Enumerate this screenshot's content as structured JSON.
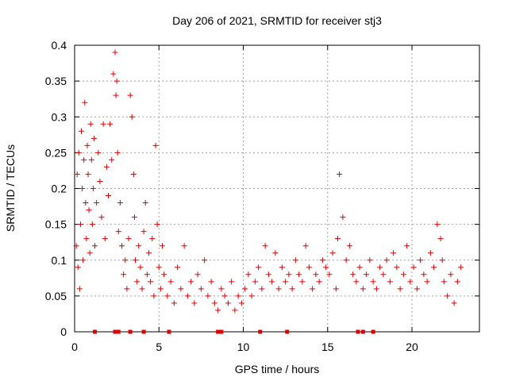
{
  "chart_data": {
    "type": "scatter",
    "title": "Day 206 of 2021, SRMTID for receiver stj3",
    "xlabel": "GPS time / hours",
    "ylabel": "SRMTID / TECUs",
    "xlim": [
      0,
      24
    ],
    "ylim": [
      0,
      0.4
    ],
    "xticks": [
      0,
      5,
      10,
      15,
      20
    ],
    "xtick_labels": [
      "0",
      "5",
      "10",
      "15",
      "20"
    ],
    "yticks": [
      0,
      0.05,
      0.1,
      0.15,
      0.2,
      0.25,
      0.3,
      0.35,
      0.4
    ],
    "ytick_labels": [
      "0",
      "0.05",
      "0.1",
      "0.15",
      "0.2",
      "0.25",
      "0.3",
      "0.35",
      "0.4"
    ],
    "grid": true,
    "marker": "+",
    "color": "#e00000",
    "series": [
      {
        "name": "SRMTID",
        "x": [
          0.1,
          0.15,
          0.2,
          0.25,
          0.3,
          0.35,
          0.4,
          0.45,
          0.5,
          0.55,
          0.6,
          0.65,
          0.7,
          0.75,
          0.8,
          0.85,
          0.9,
          0.95,
          1.0,
          1.05,
          1.1,
          1.15,
          1.2,
          1.3,
          1.4,
          1.5,
          1.6,
          1.7,
          1.8,
          1.9,
          2.0,
          2.1,
          2.2,
          2.3,
          2.4,
          2.45,
          2.5,
          2.55,
          2.6,
          2.7,
          2.8,
          2.9,
          3.0,
          3.1,
          3.2,
          3.3,
          3.4,
          3.5,
          3.55,
          3.6,
          3.7,
          3.8,
          3.9,
          4.0,
          4.1,
          4.2,
          4.3,
          4.4,
          4.5,
          4.6,
          4.7,
          4.8,
          4.9,
          5.0,
          5.1,
          5.2,
          5.3,
          5.5,
          5.7,
          5.9,
          6.1,
          6.3,
          6.5,
          6.7,
          6.9,
          7.1,
          7.3,
          7.5,
          7.7,
          7.9,
          8.1,
          8.3,
          8.5,
          8.7,
          8.9,
          9.1,
          9.3,
          9.5,
          9.7,
          9.9,
          10.1,
          10.3,
          10.5,
          10.7,
          10.9,
          11.1,
          11.3,
          11.5,
          11.7,
          11.9,
          12.1,
          12.3,
          12.5,
          12.7,
          12.9,
          13.1,
          13.3,
          13.5,
          13.7,
          13.9,
          14.1,
          14.3,
          14.5,
          14.7,
          14.9,
          15.1,
          15.3,
          15.5,
          15.6,
          15.7,
          15.9,
          16.1,
          16.3,
          16.5,
          16.7,
          16.9,
          17.1,
          17.3,
          17.5,
          17.7,
          17.9,
          18.1,
          18.3,
          18.5,
          18.7,
          18.9,
          19.1,
          19.3,
          19.5,
          19.7,
          19.9,
          20.1,
          20.3,
          20.5,
          20.7,
          20.9,
          21.1,
          21.3,
          21.5,
          21.7,
          21.8,
          21.9,
          22.1,
          22.3,
          22.5,
          22.7,
          22.9
        ],
        "y": [
          0.12,
          0.22,
          0.09,
          0.25,
          0.06,
          0.15,
          0.28,
          0.2,
          0.1,
          0.24,
          0.32,
          0.18,
          0.13,
          0.26,
          0.22,
          0.17,
          0.11,
          0.29,
          0.24,
          0.15,
          0.2,
          0.27,
          0.12,
          0.18,
          0.25,
          0.21,
          0.16,
          0.29,
          0.13,
          0.23,
          0.19,
          0.29,
          0.24,
          0.36,
          0.39,
          0.33,
          0.35,
          0.25,
          0.14,
          0.18,
          0.12,
          0.08,
          0.1,
          0.06,
          0.13,
          0.33,
          0.3,
          0.22,
          0.16,
          0.1,
          0.07,
          0.12,
          0.09,
          0.06,
          0.14,
          0.18,
          0.08,
          0.11,
          0.07,
          0.13,
          0.05,
          0.26,
          0.15,
          0.09,
          0.06,
          0.12,
          0.08,
          0.05,
          0.07,
          0.04,
          0.09,
          0.06,
          0.12,
          0.05,
          0.07,
          0.04,
          0.08,
          0.06,
          0.1,
          0.05,
          0.07,
          0.04,
          0.03,
          0.06,
          0.05,
          0.04,
          0.07,
          0.03,
          0.05,
          0.04,
          0.06,
          0.08,
          0.05,
          0.07,
          0.09,
          0.06,
          0.12,
          0.08,
          0.07,
          0.11,
          0.06,
          0.09,
          0.07,
          0.08,
          0.06,
          0.1,
          0.08,
          0.07,
          0.12,
          0.09,
          0.06,
          0.08,
          0.07,
          0.1,
          0.09,
          0.08,
          0.11,
          0.06,
          0.13,
          0.22,
          0.16,
          0.1,
          0.12,
          0.08,
          0.07,
          0.09,
          0.06,
          0.08,
          0.1,
          0.07,
          0.06,
          0.09,
          0.08,
          0.1,
          0.07,
          0.11,
          0.09,
          0.06,
          0.08,
          0.12,
          0.07,
          0.09,
          0.06,
          0.1,
          0.08,
          0.07,
          0.11,
          0.09,
          0.15,
          0.13,
          0.1,
          0.07,
          0.05,
          0.08,
          0.04,
          0.07,
          0.09
        ]
      }
    ],
    "markers_on_axis_x": [
      1.2,
      2.4,
      2.6,
      3.3,
      4.1,
      5.6,
      8.5,
      8.7,
      11.0,
      12.6,
      16.8,
      17.1,
      17.7
    ]
  }
}
